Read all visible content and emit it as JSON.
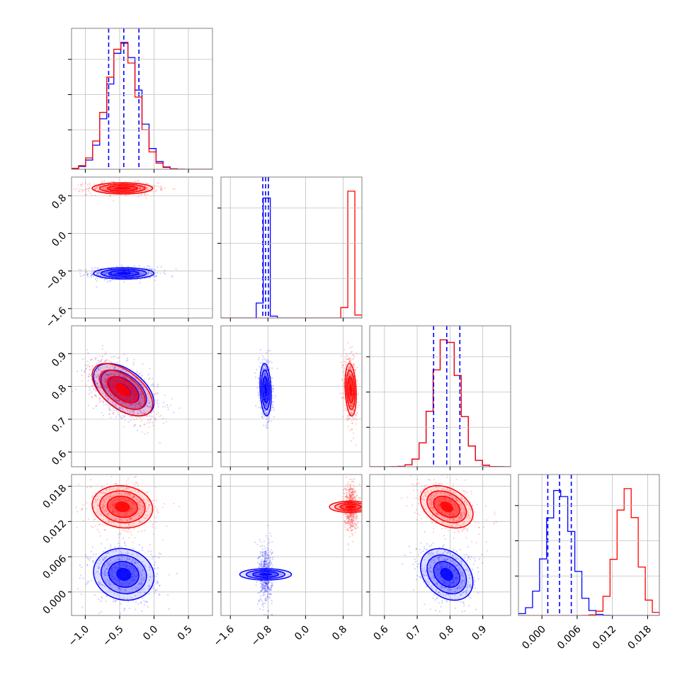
{
  "chart_data": {
    "type": "corner",
    "description": "Corner plot comparing two posterior sample sets (blue and red) over four parameters",
    "colors": {
      "blue": "#0000ff",
      "red": "#ff0000",
      "grid": "#c0c0c0",
      "frame": "#808080"
    },
    "parameters": [
      {
        "index": 0,
        "xlim": [
          -1.2,
          0.85
        ],
        "ticks": [
          -1.0,
          -0.5,
          0.0,
          0.5
        ],
        "tick_labels": [
          "−1.0",
          "−0.5",
          "0.0",
          "0.5"
        ]
      },
      {
        "index": 1,
        "xlim": [
          -1.8,
          1.2
        ],
        "ticks": [
          -1.6,
          -0.8,
          0.0,
          0.8
        ],
        "tick_labels": [
          "−1.6",
          "−0.8",
          "0.0",
          "0.8"
        ]
      },
      {
        "index": 2,
        "xlim": [
          0.555,
          0.985
        ],
        "ticks": [
          0.6,
          0.7,
          0.8,
          0.9
        ],
        "tick_labels": [
          "0.6",
          "0.7",
          "0.8",
          "0.9"
        ]
      },
      {
        "index": 3,
        "xlim": [
          -0.004,
          0.02
        ],
        "ticks": [
          0.0,
          0.006,
          0.012,
          0.018
        ],
        "tick_labels": [
          "0.000",
          "0.006",
          "0.012",
          "0.018"
        ]
      }
    ],
    "series": [
      {
        "color": "blue",
        "means": [
          -0.44,
          -0.85,
          0.79,
          0.003
        ],
        "sds": [
          0.22,
          0.06,
          0.04,
          0.0022
        ],
        "corr": {
          "0-2": -0.5,
          "2-3": -0.3,
          "0-3": -0.1,
          "1-2": -0.2,
          "1-3": 0.0,
          "0-1": 0.0
        },
        "quantiles": [
          [
            -0.66,
            -0.44,
            -0.22
          ],
          [
            -0.91,
            -0.85,
            -0.79
          ],
          [
            0.75,
            0.79,
            0.83
          ],
          [
            0.001,
            0.003,
            0.005
          ]
        ]
      },
      {
        "color": "red",
        "means": [
          -0.46,
          0.96,
          0.79,
          0.0145
        ],
        "sds": [
          0.22,
          0.06,
          0.04,
          0.0018
        ],
        "corr": {
          "0-2": -0.55,
          "2-3": -0.35,
          "0-3": -0.1,
          "1-2": -0.2,
          "1-3": 0.0,
          "0-1": 0.0
        }
      }
    ],
    "quantile_lines": {
      "color": "blue",
      "style": "dashed"
    },
    "grid": true
  }
}
